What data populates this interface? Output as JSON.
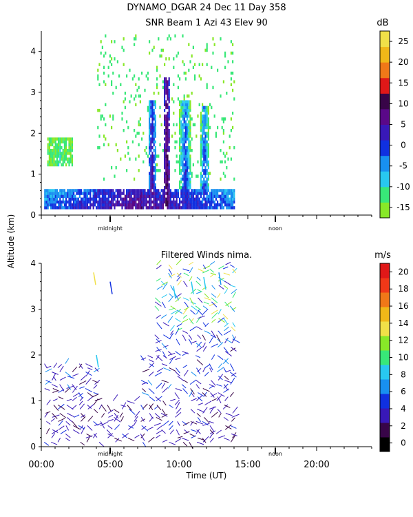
{
  "header": {
    "title_line1": "DYNAMO_DGAR  24 Dec 11 Day 358",
    "title_line2": "SNR Beam 1 Azi  43 Elev 90"
  },
  "shared": {
    "ylabel": "Altitude (km)",
    "xlabel": "Time (UT)",
    "midnight_label": "midnight",
    "noon_label": "noon"
  },
  "chart_data": [
    {
      "type": "heatmap",
      "title": "SNR Beam 1 Azi  43 Elev 90",
      "ylabel": "Altitude (km)",
      "ylim": [
        0,
        4.5
      ],
      "yticks": [
        "0",
        "1",
        "2",
        "3",
        "4"
      ],
      "xlim_hours": [
        0,
        24
      ],
      "marker_hours": {
        "midnight": 8.5,
        "noon": 20.5
      },
      "colorbar": {
        "unit": "dB",
        "ticks": [
          "-15",
          "-10",
          "-5",
          "0",
          "5",
          "10",
          "15",
          "20",
          "25"
        ],
        "colors": [
          "#88e828",
          "#38e878",
          "#28c8f0",
          "#1890f0",
          "#1030e0",
          "#3818b8",
          "#5a0888",
          "#380548",
          "#e01818",
          "#f07818",
          "#f0b818",
          "#f0e048"
        ]
      },
      "data_extent_hours": [
        0,
        14
      ],
      "data_extent_km": [
        0.1,
        4.4
      ],
      "features": [
        {
          "name": "boundary layer",
          "hours": [
            0.2,
            14
          ],
          "km": [
            0.1,
            0.6
          ],
          "snr_db": [
            -5,
            10
          ]
        },
        {
          "name": "convective column",
          "hours": [
            8.8,
            9.3
          ],
          "km": [
            0.1,
            3.3
          ],
          "snr_db": [
            0,
            15
          ]
        },
        {
          "name": "convective column",
          "hours": [
            7.7,
            8.3
          ],
          "km": [
            0.1,
            2.8
          ],
          "snr_db": [
            -10,
            10
          ]
        },
        {
          "name": "convective column",
          "hours": [
            10.0,
            10.8
          ],
          "km": [
            0.1,
            2.8
          ],
          "snr_db": [
            -15,
            5
          ]
        },
        {
          "name": "convective column",
          "hours": [
            11.5,
            12.1
          ],
          "km": [
            0.1,
            2.6
          ],
          "snr_db": [
            -15,
            5
          ]
        },
        {
          "name": "cloud layer",
          "hours": [
            0.4,
            2.2
          ],
          "km": [
            1.2,
            1.9
          ],
          "snr_db": [
            -15,
            -10
          ]
        }
      ]
    },
    {
      "type": "scatter",
      "title": "Filtered Winds nima.",
      "ylabel": "Altitude (km)",
      "xlabel": "Time (UT)",
      "ylim": [
        0,
        4
      ],
      "yticks": [
        "0",
        "1",
        "2",
        "3",
        "4"
      ],
      "xlim_hours": [
        0,
        24
      ],
      "xticks": [
        "00:00",
        "05:00",
        "10:00",
        "15:00",
        "20:00"
      ],
      "marker_hours": {
        "midnight": 5,
        "noon": 17
      },
      "colorbar": {
        "unit": "m/s",
        "ticks": [
          "0",
          "2",
          "4",
          "6",
          "8",
          "10",
          "12",
          "14",
          "16",
          "18",
          "20"
        ],
        "colors": [
          "#000000",
          "#380548",
          "#3818b8",
          "#1030e0",
          "#1890f0",
          "#28c8f0",
          "#38e878",
          "#88e828",
          "#f0e048",
          "#f0b818",
          "#f07818",
          "#f03818",
          "#e01818"
        ]
      },
      "wind_speed_by_altitude": [
        {
          "km": [
            0,
            1
          ],
          "speed_ms": [
            2,
            5
          ]
        },
        {
          "km": [
            1,
            2.5
          ],
          "speed_ms": [
            2,
            7
          ]
        },
        {
          "km": [
            2.5,
            4
          ],
          "speed_ms": [
            3,
            15
          ]
        }
      ]
    }
  ]
}
